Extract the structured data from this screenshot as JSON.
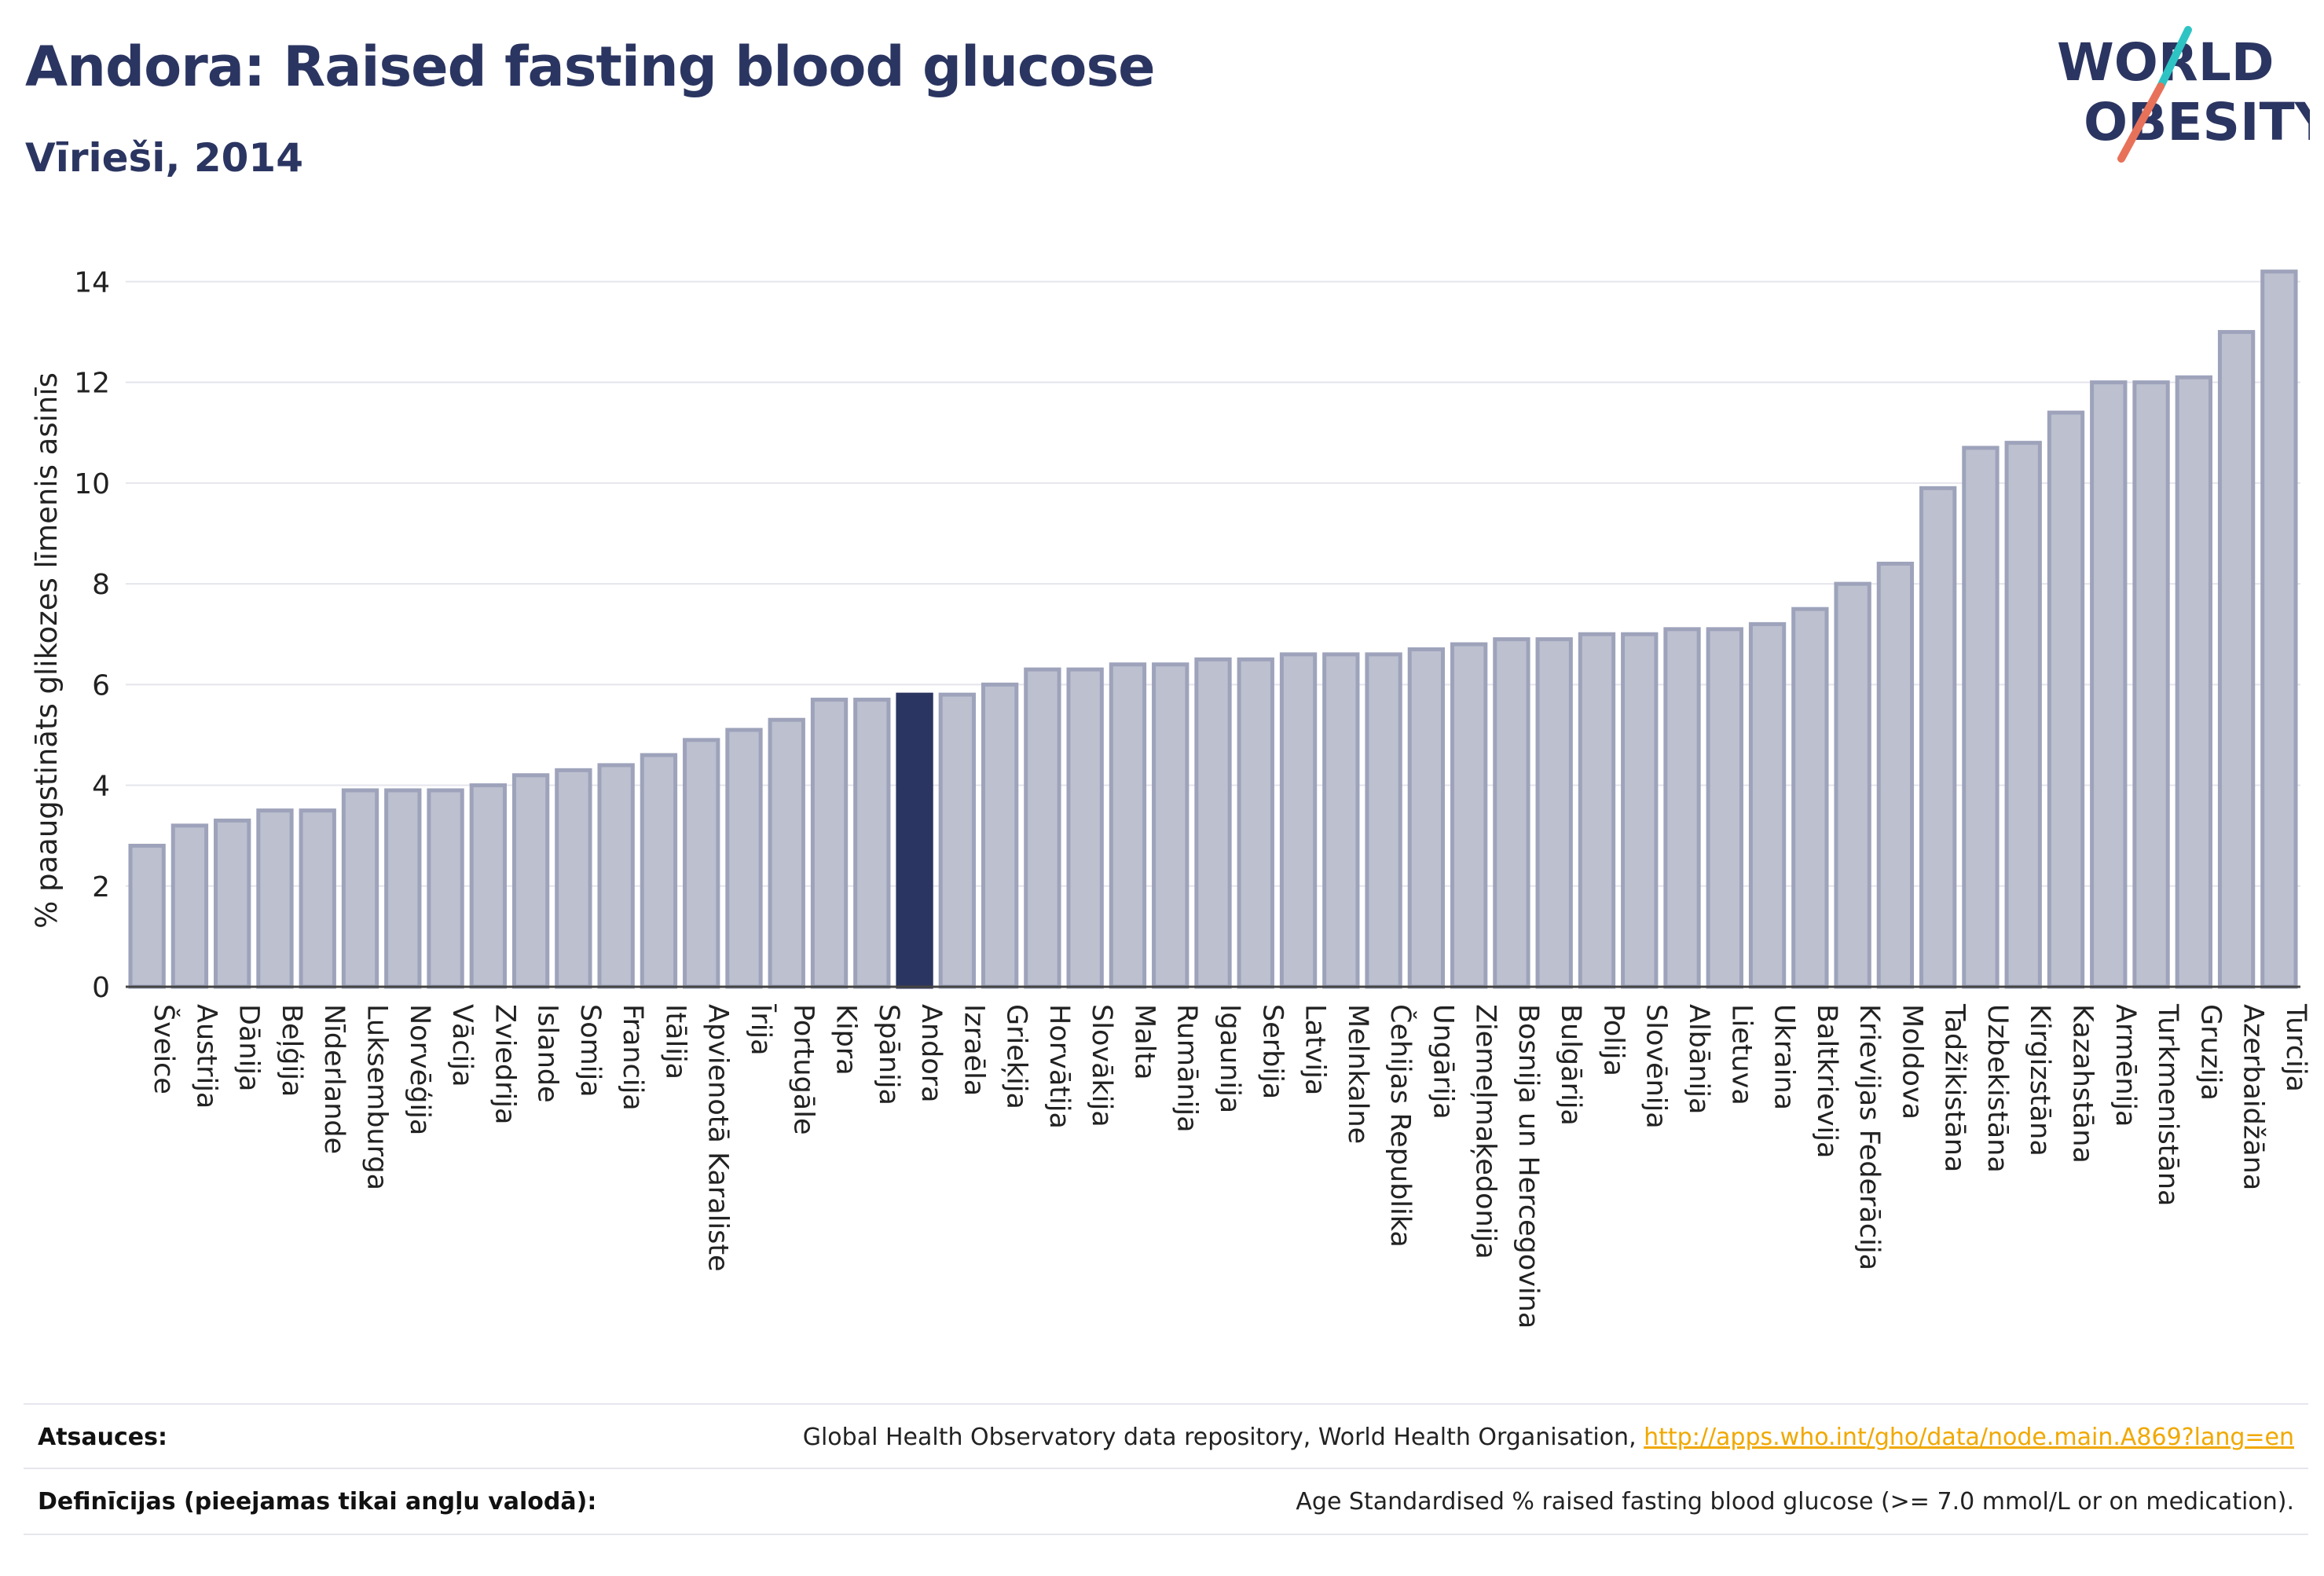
{
  "header": {
    "title": "Andora: Raised fasting blood glucose",
    "subtitle": "Vīrieši, 2014"
  },
  "logo": {
    "line1": "WORLD",
    "line2": "OBESITY"
  },
  "chart_data": {
    "type": "bar",
    "ylabel": "% paaugstināts glikozes līmenis asinīs",
    "xlabel": "",
    "ylim": [
      0,
      14.6
    ],
    "yticks": [
      0,
      2,
      4,
      6,
      8,
      10,
      12,
      14
    ],
    "grid": true,
    "highlight": "Andora",
    "colors": {
      "bar": "#bcc0cf",
      "bar_edge": "#9ea3bb",
      "highlight": "#2b3561"
    },
    "categories": [
      "Šveice",
      "Austrija",
      "Dānija",
      "Beļģija",
      "Nīderlande",
      "Luksemburga",
      "Norvēģija",
      "Vācija",
      "Zviedrija",
      "Islande",
      "Somija",
      "Francija",
      "Itālija",
      "Apvienotā Karaliste",
      "Īrija",
      "Portugāle",
      "Kipra",
      "Spānija",
      "Andora",
      "Izraēla",
      "Grieķija",
      "Horvātija",
      "Slovākija",
      "Malta",
      "Rumānija",
      "Igaunija",
      "Serbija",
      "Latvija",
      "Melnkalne",
      "Čehijas Republika",
      "Ungārija",
      "Ziemeļmaķedonija",
      "Bosnija un Hercegovina",
      "Bulgārija",
      "Polija",
      "Slovēnija",
      "Albānija",
      "Lietuva",
      "Ukraina",
      "Baltkrievija",
      "Krievijas Federācija",
      "Moldova",
      "Tadžikistāna",
      "Uzbekistāna",
      "Kirgizstāna",
      "Kazahstāna",
      "Armēnija",
      "Turkmenistāna",
      "Gruzija",
      "Azerbaidžāna",
      "Turcija"
    ],
    "values": [
      2.8,
      3.2,
      3.3,
      3.5,
      3.5,
      3.9,
      3.9,
      3.9,
      4.0,
      4.2,
      4.3,
      4.4,
      4.6,
      4.9,
      5.1,
      5.3,
      5.7,
      5.7,
      5.8,
      5.8,
      6.0,
      6.3,
      6.3,
      6.4,
      6.4,
      6.5,
      6.5,
      6.6,
      6.6,
      6.6,
      6.7,
      6.8,
      6.9,
      6.9,
      7.0,
      7.0,
      7.1,
      7.1,
      7.2,
      7.5,
      8.0,
      8.4,
      9.9,
      10.7,
      10.8,
      11.4,
      12.0,
      12.0,
      12.1,
      13.0,
      14.2
    ]
  },
  "footer": {
    "sources_label": "Atsauces:",
    "sources_text": "Global Health Observatory data repository, World Health Organisation, ",
    "sources_link": "http://apps.who.int/gho/data/node.main.A869?lang=en",
    "definitions_label": "Definīcijas (pieejamas tikai angļu valodā):",
    "definitions_text": "Age Standardised % raised fasting blood glucose (>= 7.0 mmol/L or on medication)."
  }
}
